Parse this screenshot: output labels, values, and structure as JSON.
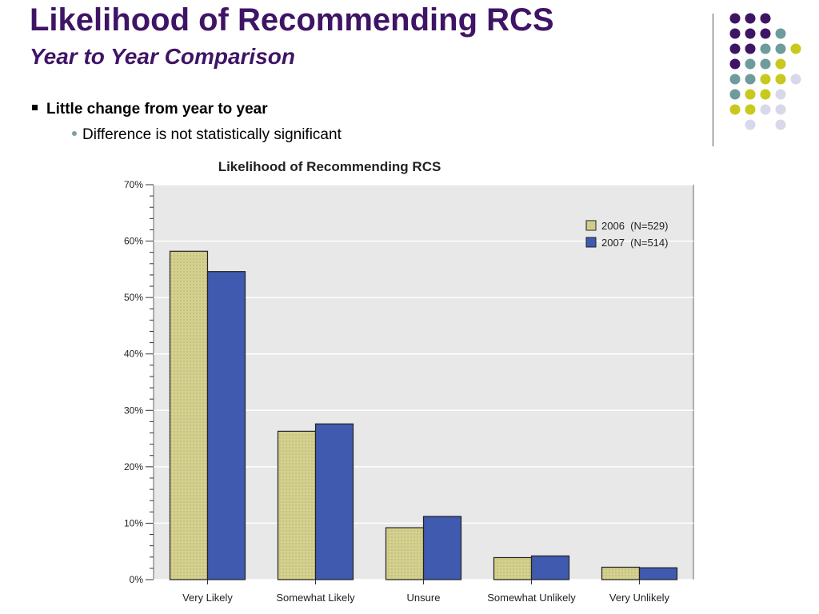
{
  "slide": {
    "title": "Likelihood of Recommending RCS",
    "subtitle": "Year to Year Comparison",
    "bullets": [
      {
        "text": "Little change from year to year",
        "sub": [
          "Difference is not statistically significant"
        ]
      }
    ]
  },
  "colors": {
    "title": "#3f1465",
    "deco_dot_palette": [
      "#3f1465",
      "#6e9b9b",
      "#c9c81c",
      "#d8d8ea"
    ]
  },
  "decoration": {
    "dot_grid": [
      [
        0,
        0,
        0,
        -1,
        -1
      ],
      [
        0,
        0,
        0,
        1,
        -1
      ],
      [
        0,
        0,
        1,
        1,
        2
      ],
      [
        0,
        1,
        1,
        2,
        -1
      ],
      [
        1,
        1,
        2,
        2,
        3
      ],
      [
        1,
        2,
        2,
        3,
        -1
      ],
      [
        2,
        2,
        3,
        3,
        -1
      ],
      [
        -1,
        3,
        -1,
        3,
        -1
      ]
    ]
  },
  "chart_data": {
    "type": "bar",
    "title": "Likelihood of Recommending RCS",
    "categories": [
      "Very Likely",
      "Somewhat Likely",
      "Unsure",
      "Somewhat Unlikely",
      "Very Unlikely"
    ],
    "series": [
      {
        "name": "2006  (N=529)",
        "values": [
          58.2,
          26.3,
          9.2,
          3.9,
          2.2
        ],
        "color": "#d4d08e",
        "pattern": "dotted"
      },
      {
        "name": "2007  (N=514)",
        "values": [
          54.6,
          27.6,
          11.2,
          4.2,
          2.1
        ],
        "color": "#3f5aae"
      }
    ],
    "ylim": [
      0,
      70
    ],
    "yticks": [
      "0%",
      "10%",
      "20%",
      "30%",
      "40%",
      "50%",
      "60%",
      "70%"
    ],
    "xlabel": "",
    "ylabel": "",
    "grid": true,
    "legend": "top-right",
    "plot_background": "#e8e8e8"
  }
}
